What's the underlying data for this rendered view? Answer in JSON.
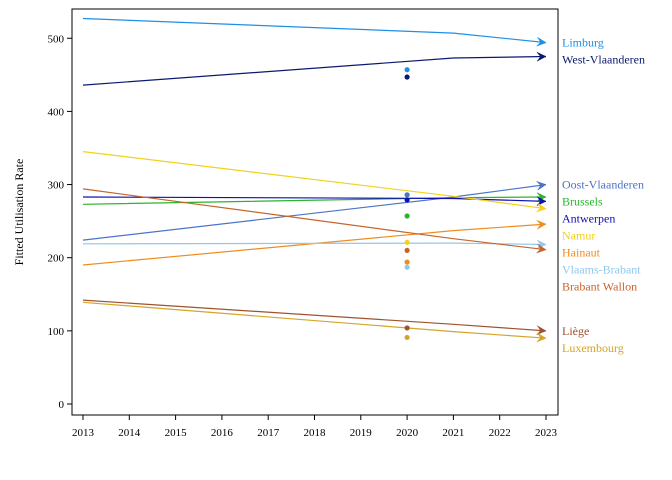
{
  "chart_data": {
    "type": "line",
    "title": "",
    "xlabel": "",
    "ylabel": "Fitted Utilisation Rate",
    "xlim": [
      2013,
      2023
    ],
    "ylim": [
      0,
      540
    ],
    "x_ticks": [
      "2013",
      "2014",
      "2015",
      "2016",
      "2017",
      "2018",
      "2019",
      "2020",
      "2021",
      "2022",
      "2023"
    ],
    "y_ticks": [
      "0",
      "100",
      "200",
      "300",
      "400",
      "500"
    ],
    "grid": false,
    "legend": "direct labels at right end of lines",
    "series": [
      {
        "name": "Limburg",
        "color": "#1f8fe6",
        "x": [
          2013,
          2021,
          2023
        ],
        "y": [
          527,
          507,
          494
        ],
        "point": {
          "x": 2020,
          "y": 457
        }
      },
      {
        "name": "West-Vlaanderen",
        "color": "#0b1a6e",
        "x": [
          2013,
          2021,
          2023
        ],
        "y": [
          436,
          473,
          475
        ],
        "point": {
          "x": 2020,
          "y": 447
        }
      },
      {
        "name": "Oost-Vlaanderen",
        "color": "#4a74c8",
        "x": [
          2013,
          2021,
          2023
        ],
        "y": [
          224,
          283,
          300
        ],
        "point": {
          "x": 2020,
          "y": 286
        }
      },
      {
        "name": "Brussels",
        "color": "#2ab52a",
        "x": [
          2013,
          2021,
          2023
        ],
        "y": [
          273,
          282,
          283
        ],
        "point": {
          "x": 2020,
          "y": 257
        }
      },
      {
        "name": "Antwerpen",
        "color": "#1010b0",
        "x": [
          2013,
          2021,
          2023
        ],
        "y": [
          283,
          281,
          277
        ],
        "point": {
          "x": 2020,
          "y": 279
        }
      },
      {
        "name": "Namur",
        "color": "#f2d21a",
        "x": [
          2013,
          2021,
          2023
        ],
        "y": [
          345,
          284,
          267
        ],
        "point": {
          "x": 2020,
          "y": 221
        }
      },
      {
        "name": "Hainaut",
        "color": "#f08c1e",
        "x": [
          2013,
          2021,
          2023
        ],
        "y": [
          190,
          237,
          246
        ],
        "point": {
          "x": 2020,
          "y": 194
        }
      },
      {
        "name": "Vlaams-Brabant",
        "color": "#8fc8ee",
        "x": [
          2013,
          2021,
          2023
        ],
        "y": [
          219,
          220,
          218
        ],
        "point": {
          "x": 2020,
          "y": 187
        }
      },
      {
        "name": "Brabant Wallon",
        "color": "#c8642a",
        "x": [
          2013,
          2021,
          2023
        ],
        "y": [
          294,
          226,
          211
        ],
        "point": {
          "x": 2020,
          "y": 210
        }
      },
      {
        "name": "Liège",
        "color": "#a0522d",
        "x": [
          2013,
          2021,
          2023
        ],
        "y": [
          142,
          109,
          100
        ],
        "point": {
          "x": 2020,
          "y": 104
        }
      },
      {
        "name": "Luxembourg",
        "color": "#d4a52a",
        "x": [
          2013,
          2021,
          2023
        ],
        "y": [
          139,
          99,
          90
        ],
        "point": {
          "x": 2020,
          "y": 91
        }
      }
    ]
  }
}
